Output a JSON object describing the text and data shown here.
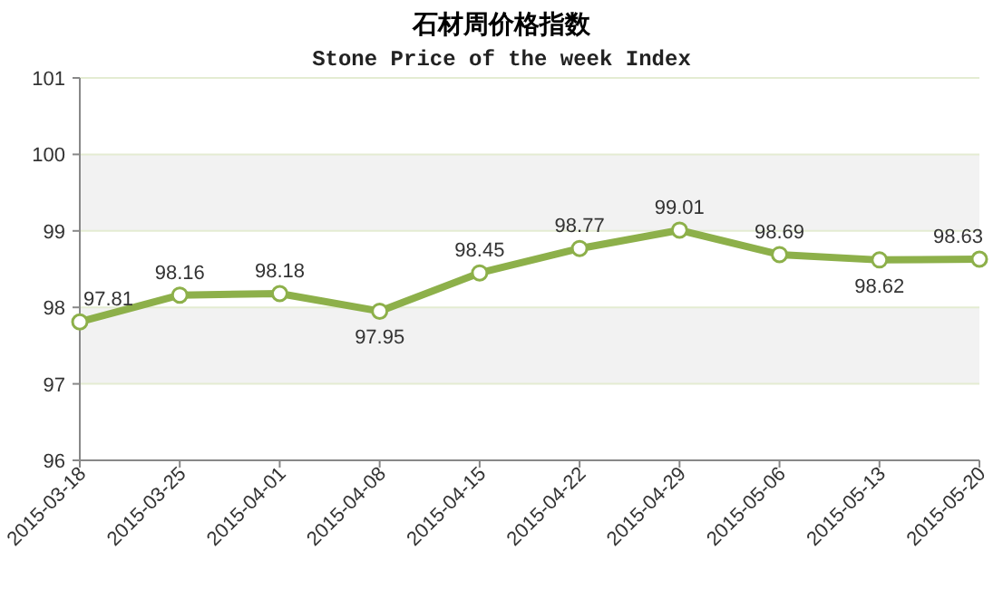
{
  "chart_data": {
    "type": "line",
    "title": "石材周价格指数",
    "subtitle": "Stone Price of the week Index",
    "categories": [
      "2015-03-18",
      "2015-03-25",
      "2015-04-01",
      "2015-04-08",
      "2015-04-15",
      "2015-04-22",
      "2015-04-29",
      "2015-05-06",
      "2015-05-13",
      "2015-05-20"
    ],
    "values": [
      97.81,
      98.16,
      98.18,
      97.95,
      98.45,
      98.77,
      99.01,
      98.69,
      98.62,
      98.63
    ],
    "color": "#8db04a",
    "marker": "circle",
    "data_labels": true,
    "ylim": [
      96,
      101
    ],
    "yticks": [
      96,
      97,
      98,
      99,
      100,
      101
    ],
    "grid": "y"
  }
}
